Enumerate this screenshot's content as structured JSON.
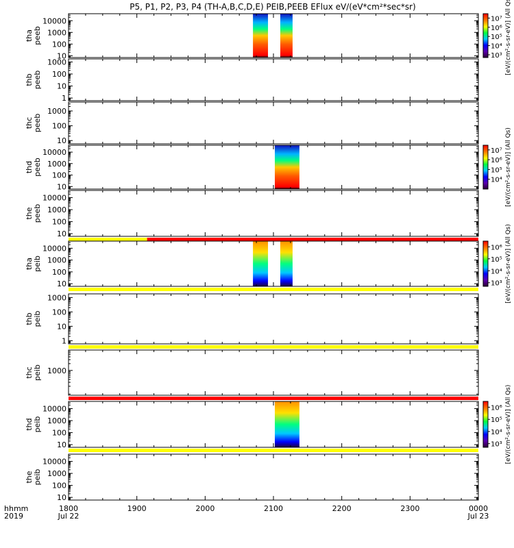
{
  "title": "P5, P1, P2, P3, P4 (TH-A,B,C,D,E) PEIB,PEEB EFlux eV/(eV*cm²*sec*sr)",
  "colors": {
    "flag_yellow": "#ffff00",
    "flag_red": "#ff0000",
    "axis": "#000000"
  },
  "chart_data": {
    "type": "heatmap",
    "x_axis": {
      "range_hours": [
        18,
        24
      ],
      "tick_labels": [
        "1800",
        "1900",
        "2000",
        "2100",
        "2200",
        "2300",
        "0000"
      ],
      "row_label_1": "hhmm",
      "row_label_2": "2019",
      "date_start": "Jul 22",
      "date_end": "Jul 23"
    },
    "panels": [
      {
        "name": "tha-peeb",
        "probe": "tha",
        "product": "peeb",
        "ylim": [
          7,
          40000
        ],
        "yticks": [
          "10",
          "100",
          "1000",
          "10000"
        ],
        "data_intervals": [
          [
            20.7,
            20.92
          ],
          [
            21.1,
            21.28
          ]
        ],
        "colorbar": {
          "label": "[eV/(cm²-s-sr-eV)] (All Qs)",
          "range": [
            500,
            30000000
          ],
          "ticks": [
            "10³",
            "10⁴",
            "10⁵",
            "10⁶",
            "10⁷"
          ]
        }
      },
      {
        "name": "thb-peeb",
        "probe": "thb",
        "product": "peeb",
        "ylim": [
          0.6,
          1800
        ],
        "yticks": [
          "1",
          "10",
          "100",
          "1000"
        ],
        "data_intervals": []
      },
      {
        "name": "thc-peeb",
        "probe": "thc",
        "product": "peeb",
        "ylim": [
          6,
          4000
        ],
        "yticks": [
          "10",
          "100",
          "1000"
        ],
        "data_intervals": []
      },
      {
        "name": "thd-peeb",
        "probe": "thd",
        "product": "peeb",
        "ylim": [
          6,
          40000
        ],
        "yticks": [
          "10",
          "100",
          "1000",
          "10000"
        ],
        "data_intervals": [
          [
            21.02,
            21.38
          ]
        ],
        "colorbar": {
          "label": "[eV/(cm²-s-sr-eV)] (All Qs)",
          "range": [
            1000,
            30000000
          ],
          "ticks": [
            "10⁴",
            "10⁵",
            "10⁶",
            "10⁷"
          ]
        }
      },
      {
        "name": "the-peeb",
        "probe": "the",
        "product": "peeb",
        "ylim": [
          6,
          40000
        ],
        "yticks": [
          "10",
          "100",
          "1000",
          "10000"
        ],
        "data_intervals": [],
        "flag_below": {
          "yellow_until_hours": 19.15
        }
      },
      {
        "name": "tha-peib",
        "probe": "tha",
        "product": "peib",
        "ylim": [
          6,
          40000
        ],
        "yticks": [
          "10",
          "100",
          "1000",
          "10000"
        ],
        "data_intervals": [
          [
            20.7,
            20.92
          ],
          [
            21.1,
            21.28
          ]
        ],
        "colorbar": {
          "label": "[eV/(cm²-s-sr-eV)] (All Qs)",
          "range": [
            500,
            3000000
          ],
          "ticks": [
            "10³",
            "10⁴",
            "10⁵",
            "10⁶"
          ]
        },
        "flag_below": {
          "yellow_until_hours": 24
        }
      },
      {
        "name": "thb-peib",
        "probe": "thb",
        "product": "peib",
        "ylim": [
          0.6,
          1800
        ],
        "yticks": [
          "1",
          "10",
          "100",
          "1000"
        ],
        "data_intervals": [],
        "flag_below": {
          "yellow_until_hours": 24
        }
      },
      {
        "name": "thc-peib",
        "probe": "thc",
        "product": "peib",
        "ylim": [
          80,
          8000
        ],
        "yticks": [
          "1000"
        ],
        "data_intervals": [],
        "flag_below": {
          "yellow_until_hours": 18
        }
      },
      {
        "name": "thd-peib",
        "probe": "thd",
        "product": "peib",
        "ylim": [
          6,
          40000
        ],
        "yticks": [
          "10",
          "100",
          "1000",
          "10000"
        ],
        "data_intervals": [
          [
            21.02,
            21.38
          ]
        ],
        "colorbar": {
          "label": "[eV/(cm²-s-sr-eV)] (All Qs)",
          "range": [
            500,
            3000000
          ],
          "ticks": [
            "10³",
            "10⁴",
            "10⁵",
            "10⁶"
          ]
        },
        "flag_below": {
          "yellow_until_hours": 24
        }
      },
      {
        "name": "the-peib",
        "probe": "the",
        "product": "peib",
        "ylim": [
          6,
          40000
        ],
        "yticks": [
          "10",
          "100",
          "1000",
          "10000"
        ],
        "data_intervals": []
      }
    ]
  }
}
